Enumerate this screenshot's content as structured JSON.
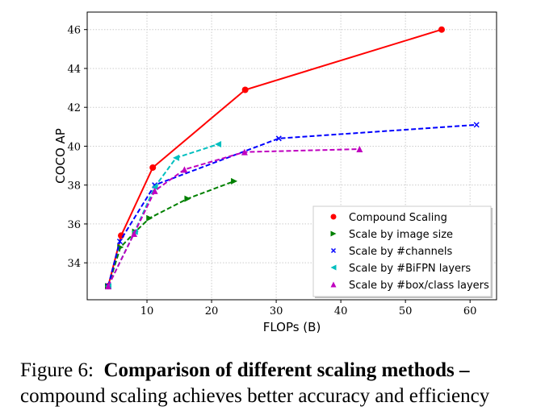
{
  "chart_data": {
    "type": "line",
    "xlabel": "FLOPs (B)",
    "ylabel": "COCO AP",
    "xlim": [
      0.75,
      64.1
    ],
    "ylim": [
      32.1,
      46.9
    ],
    "xticks": [
      10,
      20,
      30,
      40,
      50,
      60
    ],
    "yticks": [
      34,
      36,
      38,
      40,
      42,
      44,
      46
    ],
    "grid": true,
    "legend_position": "bottom-right",
    "series": [
      {
        "name": "Compound Scaling",
        "color": "#ff0000",
        "marker": "circle",
        "dash": false,
        "points": [
          [
            4,
            32.8
          ],
          [
            6,
            35.4
          ],
          [
            10.9,
            38.9
          ],
          [
            25.2,
            42.9
          ],
          [
            55.6,
            46.0
          ]
        ]
      },
      {
        "name": "Scale by image size",
        "color": "#008000",
        "marker": "tri-right",
        "dash": true,
        "points": [
          [
            4,
            32.8
          ],
          [
            5.9,
            34.8
          ],
          [
            8.2,
            35.6
          ],
          [
            10.4,
            36.3
          ],
          [
            16.3,
            37.3
          ],
          [
            23.5,
            38.2
          ]
        ]
      },
      {
        "name": "Scale by #channels",
        "color": "#0000ff",
        "marker": "x",
        "dash": true,
        "points": [
          [
            4,
            32.8
          ],
          [
            5.8,
            35.1
          ],
          [
            11.2,
            38.0
          ],
          [
            30.4,
            40.4
          ],
          [
            61,
            41.1
          ]
        ]
      },
      {
        "name": "Scale by #BiFPN layers",
        "color": "#00bfbf",
        "marker": "tri-left",
        "dash": true,
        "points": [
          [
            4,
            32.8
          ],
          [
            8.1,
            35.6
          ],
          [
            11.2,
            37.9
          ],
          [
            14.5,
            39.4
          ],
          [
            21,
            40.1
          ]
        ]
      },
      {
        "name": "Scale by #box/class layers",
        "color": "#bf00bf",
        "marker": "tri-up",
        "dash": true,
        "points": [
          [
            4,
            32.8
          ],
          [
            8.0,
            35.5
          ],
          [
            11.2,
            37.7
          ],
          [
            15.8,
            38.8
          ],
          [
            25.1,
            39.7
          ],
          [
            42.9,
            39.85
          ]
        ]
      }
    ]
  },
  "caption": {
    "label": "Figure 6:",
    "bold": "Comparison of different scaling methods –",
    "rest": "compound scaling achieves better accuracy and efficiency"
  }
}
